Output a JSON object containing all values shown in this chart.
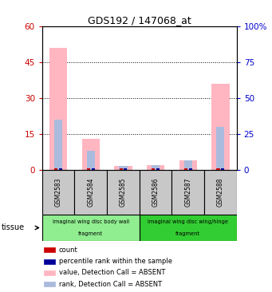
{
  "title": "GDS192 / 147068_at",
  "samples": [
    "GSM2583",
    "GSM2584",
    "GSM2585",
    "GSM2586",
    "GSM2587",
    "GSM2588"
  ],
  "value_absent": [
    51,
    13,
    1.5,
    2,
    4,
    36
  ],
  "rank_absent": [
    21,
    8,
    1.5,
    2,
    4,
    18
  ],
  "ylim_left": [
    0,
    60
  ],
  "yticks_left": [
    0,
    15,
    30,
    45,
    60
  ],
  "ylim_right": [
    0,
    100
  ],
  "yticks_right": [
    0,
    25,
    50,
    75,
    100
  ],
  "tissue_groups": [
    {
      "label": "imaginal wing disc body wall",
      "label2": "fragment",
      "samples": [
        "GSM2583",
        "GSM2584",
        "GSM2585"
      ],
      "color": "#90EE90"
    },
    {
      "label": "imaginal wing disc wing/hinge",
      "label2": "fragment",
      "samples": [
        "GSM2586",
        "GSM2587",
        "GSM2588"
      ],
      "color": "#32CD32"
    }
  ],
  "value_absent_color": "#FFB6C1",
  "rank_absent_color": "#AABBDD",
  "count_color": "#CC0000",
  "percentile_color": "#000099",
  "bg_color": "#FFFFFF",
  "left_tick_color": "#CC0000",
  "right_tick_color": "#0000CC",
  "legend_items": [
    {
      "label": "count",
      "color": "#CC0000"
    },
    {
      "label": "percentile rank within the sample",
      "color": "#000099"
    },
    {
      "label": "value, Detection Call = ABSENT",
      "color": "#FFB6C1"
    },
    {
      "label": "rank, Detection Call = ABSENT",
      "color": "#AABBDD"
    }
  ]
}
